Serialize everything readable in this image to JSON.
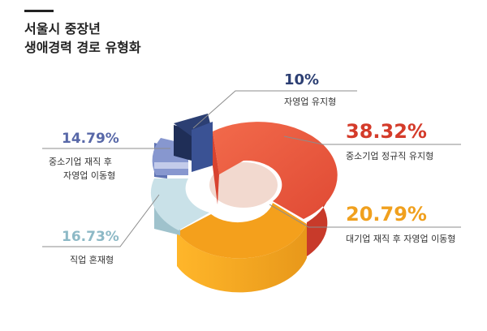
{
  "title_lines": [
    "서울시 중장년",
    "생애경력 경로 유형화"
  ],
  "chart_data": {
    "type": "pie",
    "style": "3d-donut",
    "slices": [
      {
        "label": "중소기업 정규직 유지형",
        "value": 38.32,
        "value_label": "38.32%",
        "color": "#e8513a"
      },
      {
        "label": "대기업 재직 후 자영업 이동형",
        "value": 20.79,
        "value_label": "20.79%",
        "color": "#f2a61e"
      },
      {
        "label": "직업 혼재형",
        "value": 16.73,
        "value_label": "16.73%",
        "color": "#bcd9e2"
      },
      {
        "label": "중소기업 재직 후 자영업 이동형",
        "label_lines": [
          "중소기업 재직 후",
          "자영업 이동형"
        ],
        "value": 14.79,
        "value_label": "14.79%",
        "color": "#7e90c8"
      },
      {
        "label": "자영업 유지형",
        "value": 10,
        "value_label": "10%",
        "color": "#2c3f73"
      }
    ]
  }
}
